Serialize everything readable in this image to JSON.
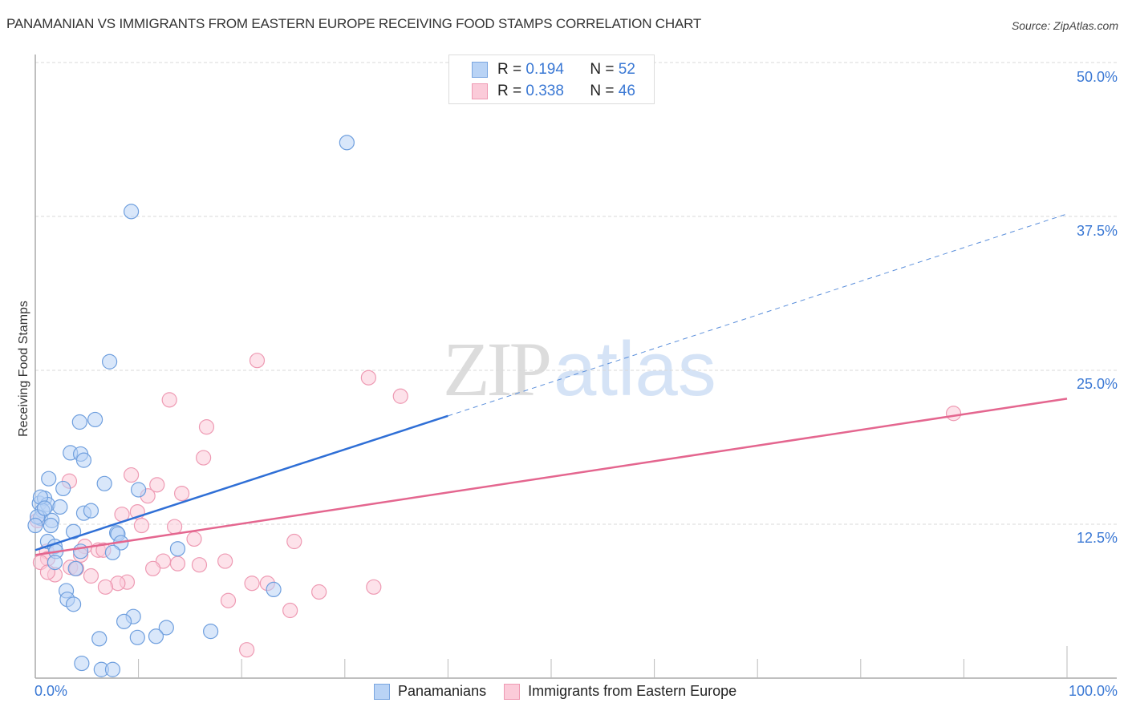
{
  "header": {
    "title": "PANAMANIAN VS IMMIGRANTS FROM EASTERN EUROPE RECEIVING FOOD STAMPS CORRELATION CHART",
    "source": "Source: ZipAtlas.com"
  },
  "watermark": {
    "zip": "ZIP",
    "atlas": "atlas"
  },
  "legend_stats": [
    {
      "r_label": "R =",
      "r_value": "0.194",
      "n_label": "N =",
      "n_value": "52",
      "color": "#b9d3f5"
    },
    {
      "r_label": "R =",
      "r_value": "0.338",
      "n_label": "N =",
      "n_value": "46",
      "color": "#fbcbd9"
    }
  ],
  "axes": {
    "ylabel": "Receiving Food Stamps",
    "y_ticks": [
      "50.0%",
      "37.5%",
      "25.0%",
      "12.5%"
    ],
    "x_min_label": "0.0%",
    "x_max_label": "100.0%"
  },
  "bottom_legend": [
    {
      "label": "Panamanians"
    },
    {
      "label": "Immigrants from Eastern Europe"
    }
  ],
  "chart_data": {
    "type": "scatter",
    "title": "PANAMANIAN VS IMMIGRANTS FROM EASTERN EUROPE RECEIVING FOOD STAMPS CORRELATION CHART",
    "xlabel": "",
    "ylabel": "Receiving Food Stamps",
    "xlim": [
      0,
      100
    ],
    "ylim": [
      0,
      51.3
    ],
    "x_tick_labels": [
      "0.0%",
      "100.0%"
    ],
    "y_tick_labels": [
      "12.5%",
      "25.0%",
      "37.5%",
      "50.0%"
    ],
    "y_ticks": [
      12.5,
      25.0,
      37.5,
      50.0
    ],
    "grid": {
      "horizontal_dashed": true,
      "vertical": false
    },
    "legend_position": "top-center and bottom",
    "series": [
      {
        "name": "Panamanians",
        "color": "#6f9fde",
        "fill": "#b9d3f5",
        "R": 0.194,
        "N": 52,
        "trend": {
          "x0": 0,
          "y0": 10.4,
          "x1": 40,
          "y1": 21.3,
          "dashed_extension_to": {
            "x": 100,
            "y": 37.7
          }
        },
        "points": [
          [
            30.2,
            43.5
          ],
          [
            9.3,
            37.9
          ],
          [
            7.2,
            25.7
          ],
          [
            4.3,
            20.8
          ],
          [
            5.8,
            21.0
          ],
          [
            3.4,
            18.3
          ],
          [
            4.4,
            18.2
          ],
          [
            4.7,
            17.7
          ],
          [
            1.3,
            16.2
          ],
          [
            6.7,
            15.8
          ],
          [
            2.7,
            15.4
          ],
          [
            10.0,
            15.3
          ],
          [
            0.4,
            14.2
          ],
          [
            0.9,
            14.6
          ],
          [
            1.2,
            14.1
          ],
          [
            2.4,
            13.9
          ],
          [
            0.7,
            13.6
          ],
          [
            4.7,
            13.4
          ],
          [
            5.4,
            13.6
          ],
          [
            0.5,
            13.0
          ],
          [
            1.6,
            12.8
          ],
          [
            0.2,
            13.1
          ],
          [
            1.5,
            12.4
          ],
          [
            3.7,
            11.9
          ],
          [
            7.9,
            11.8
          ],
          [
            8.0,
            11.7
          ],
          [
            8.3,
            11.0
          ],
          [
            1.2,
            11.1
          ],
          [
            1.9,
            10.7
          ],
          [
            2.0,
            10.3
          ],
          [
            4.4,
            10.3
          ],
          [
            13.8,
            10.5
          ],
          [
            7.5,
            10.2
          ],
          [
            1.9,
            9.4
          ],
          [
            3.9,
            8.9
          ],
          [
            23.1,
            7.2
          ],
          [
            3.0,
            7.1
          ],
          [
            3.1,
            6.4
          ],
          [
            3.7,
            6.0
          ],
          [
            9.5,
            5.0
          ],
          [
            8.6,
            4.6
          ],
          [
            12.7,
            4.1
          ],
          [
            17.0,
            3.8
          ],
          [
            6.2,
            3.2
          ],
          [
            9.9,
            3.3
          ],
          [
            11.7,
            3.4
          ],
          [
            4.5,
            1.2
          ],
          [
            6.4,
            0.7
          ],
          [
            7.5,
            0.7
          ],
          [
            0.5,
            14.7
          ],
          [
            0.9,
            13.8
          ],
          [
            0.0,
            12.4
          ]
        ]
      },
      {
        "name": "Immigrants from Eastern Europe",
        "color": "#ee9ab3",
        "fill": "#fbcbd9",
        "R": 0.338,
        "N": 46,
        "trend": {
          "x0": 0,
          "y0": 10.0,
          "x1": 100,
          "y1": 22.7
        },
        "points": [
          [
            21.5,
            25.8
          ],
          [
            32.3,
            24.4
          ],
          [
            35.4,
            22.9
          ],
          [
            13.0,
            22.6
          ],
          [
            16.6,
            20.4
          ],
          [
            89.0,
            21.5
          ],
          [
            16.3,
            17.9
          ],
          [
            9.3,
            16.5
          ],
          [
            3.3,
            16.0
          ],
          [
            11.8,
            15.7
          ],
          [
            14.2,
            15.0
          ],
          [
            10.9,
            14.8
          ],
          [
            8.4,
            13.3
          ],
          [
            9.9,
            13.5
          ],
          [
            10.3,
            12.4
          ],
          [
            13.5,
            12.3
          ],
          [
            0.2,
            12.8
          ],
          [
            15.4,
            11.3
          ],
          [
            25.1,
            11.1
          ],
          [
            4.8,
            10.7
          ],
          [
            6.1,
            10.4
          ],
          [
            6.6,
            10.4
          ],
          [
            4.4,
            10.0
          ],
          [
            1.1,
            10.3
          ],
          [
            1.2,
            9.7
          ],
          [
            18.4,
            9.5
          ],
          [
            15.9,
            9.2
          ],
          [
            13.8,
            9.3
          ],
          [
            12.4,
            9.5
          ],
          [
            11.4,
            8.9
          ],
          [
            0.5,
            9.4
          ],
          [
            3.4,
            9.0
          ],
          [
            4.0,
            8.9
          ],
          [
            1.9,
            8.4
          ],
          [
            5.4,
            8.3
          ],
          [
            8.9,
            7.8
          ],
          [
            8.0,
            7.7
          ],
          [
            6.8,
            7.4
          ],
          [
            21.0,
            7.7
          ],
          [
            22.5,
            7.7
          ],
          [
            27.5,
            7.0
          ],
          [
            32.8,
            7.4
          ],
          [
            18.7,
            6.3
          ],
          [
            24.7,
            5.5
          ],
          [
            20.5,
            2.3
          ],
          [
            1.2,
            8.6
          ]
        ]
      }
    ]
  }
}
